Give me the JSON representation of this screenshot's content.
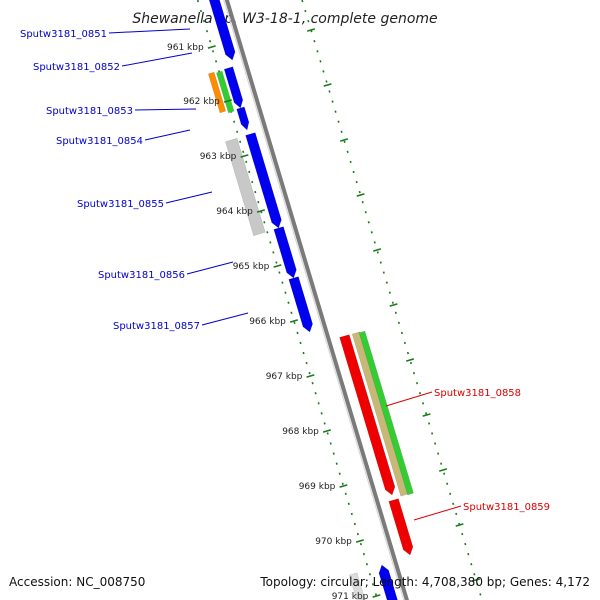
{
  "title": "Shewanella sp. W3-18-1, complete genome",
  "footer": {
    "accession": "Accession: NC_008750",
    "summary": "Topology: circular; Length: 4,708,380 bp; Genes: 4,172"
  },
  "colors": {
    "forward_gene": "#0000ee",
    "reverse_gene": "#ee0000",
    "left_label": "#0000cc",
    "right_label": "#dd0000",
    "tick": "#1a7a1a",
    "backbone": "#7a7a7a",
    "orange": "#ff8c00",
    "green": "#33cc33",
    "grey": "#c8c8c8",
    "tan": "#c8b878"
  },
  "kbp_ticks": [
    "961 kbp",
    "962 kbp",
    "963 kbp",
    "964 kbp",
    "965 kbp",
    "966 kbp",
    "967 kbp",
    "968 kbp",
    "969 kbp",
    "970 kbp",
    "971 kbp"
  ],
  "left_labels": [
    "Sputw3181_0851",
    "Sputw3181_0852",
    "Sputw3181_0853",
    "Sputw3181_0854",
    "Sputw3181_0855",
    "Sputw3181_0856",
    "Sputw3181_0857"
  ],
  "right_labels": [
    "Sputw3181_0858",
    "Sputw3181_0859"
  ]
}
